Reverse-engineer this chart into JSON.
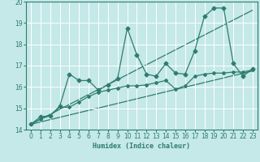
{
  "bg_color": "#c5e8e8",
  "grid_color": "#ffffff",
  "line_color": "#2e7d6e",
  "xlabel": "Humidex (Indice chaleur)",
  "xlim": [
    -0.5,
    23.5
  ],
  "ylim": [
    14,
    20
  ],
  "yticks": [
    14,
    15,
    16,
    17,
    18,
    19,
    20
  ],
  "xticks": [
    0,
    1,
    2,
    3,
    4,
    5,
    6,
    7,
    8,
    9,
    10,
    11,
    12,
    13,
    14,
    15,
    16,
    17,
    18,
    19,
    20,
    21,
    22,
    23
  ],
  "series1": {
    "x": [
      0,
      1,
      2,
      3,
      4,
      5,
      6,
      7,
      8,
      9,
      10,
      11,
      12,
      13,
      14,
      15,
      16,
      17,
      18,
      19,
      20,
      21,
      22,
      23
    ],
    "y": [
      14.25,
      14.6,
      14.65,
      15.1,
      16.6,
      16.3,
      16.3,
      15.85,
      16.1,
      16.4,
      18.75,
      17.5,
      16.6,
      16.5,
      17.1,
      16.65,
      16.6,
      17.7,
      19.3,
      19.7,
      19.7,
      17.1,
      16.5,
      16.85
    ]
  },
  "series2": {
    "x": [
      0,
      1,
      2,
      3,
      4,
      5,
      6,
      7,
      8,
      9,
      10,
      11,
      12,
      13,
      14,
      15,
      16,
      17,
      18,
      19,
      20,
      21,
      22,
      23
    ],
    "y": [
      14.25,
      14.5,
      14.65,
      15.05,
      15.05,
      15.3,
      15.55,
      15.75,
      15.85,
      15.95,
      16.05,
      16.05,
      16.1,
      16.2,
      16.3,
      15.9,
      16.05,
      16.5,
      16.6,
      16.65,
      16.65,
      16.7,
      16.7,
      16.8
    ]
  },
  "series3": {
    "x": [
      0,
      23
    ],
    "y": [
      14.25,
      19.6
    ]
  },
  "series4": {
    "x": [
      0,
      23
    ],
    "y": [
      14.25,
      16.75
    ]
  }
}
